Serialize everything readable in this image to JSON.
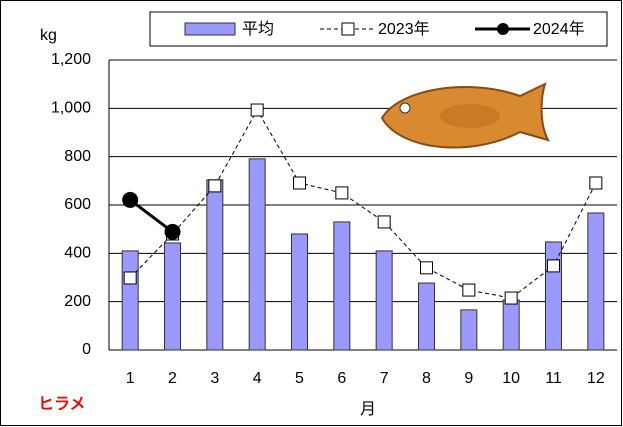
{
  "chart_data": {
    "type": "bar-line",
    "y_label": "kg",
    "x_label": "月",
    "annotation": "ヒラメ",
    "categories": [
      "1",
      "2",
      "3",
      "4",
      "5",
      "6",
      "7",
      "8",
      "9",
      "10",
      "11",
      "12"
    ],
    "series": [
      {
        "name": "平均",
        "type": "bar",
        "color": "#9999ff",
        "values": [
          410,
          443,
          704,
          791,
          480,
          530,
          410,
          277,
          166,
          207,
          447,
          567
        ]
      },
      {
        "name": "2023年",
        "type": "line",
        "color": "#000000",
        "dashed": true,
        "marker": "square",
        "values": [
          298,
          480,
          679,
          993,
          691,
          650,
          530,
          340,
          248,
          215,
          348,
          691
        ]
      },
      {
        "name": "2024年",
        "type": "line",
        "color": "#000000",
        "dashed": false,
        "marker": "circle",
        "values": [
          621,
          489,
          null,
          null,
          null,
          null,
          null,
          null,
          null,
          null,
          null,
          null
        ]
      }
    ],
    "ylim": [
      0,
      1200
    ],
    "yticks": [
      0,
      200,
      400,
      600,
      800,
      {
        "value": 1000,
        "label": "1,000"
      },
      {
        "value": 1200,
        "label": "1,200"
      }
    ],
    "grid": true
  }
}
